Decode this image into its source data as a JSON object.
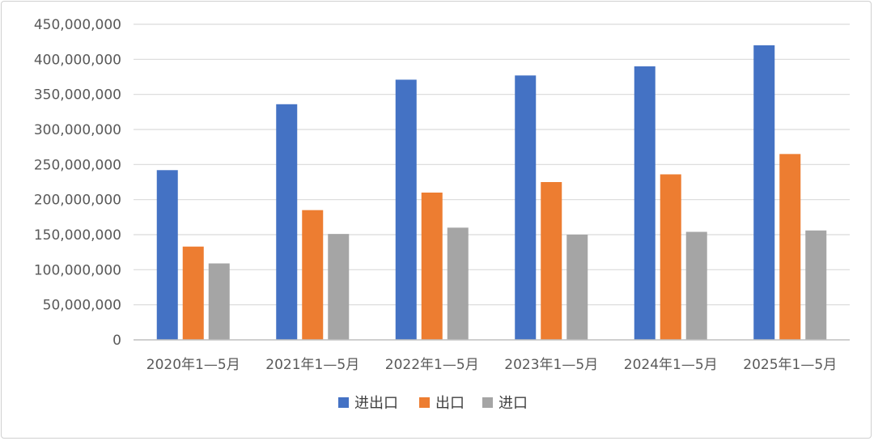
{
  "chart_data": {
    "type": "bar",
    "title": "",
    "xlabel": "",
    "ylabel": "",
    "categories": [
      "2020年1—5月",
      "2021年1—5月",
      "2022年1—5月",
      "2023年1—5月",
      "2024年1—5月",
      "2025年1—5月"
    ],
    "series": [
      {
        "name": "进出口",
        "color": "#4472C4",
        "values": [
          242000000,
          336000000,
          371000000,
          377000000,
          390000000,
          420000000
        ]
      },
      {
        "name": "出口",
        "color": "#ED7D31",
        "values": [
          133000000,
          185000000,
          210000000,
          225000000,
          236000000,
          265000000
        ]
      },
      {
        "name": "进口",
        "color": "#A5A5A5",
        "values": [
          109000000,
          151000000,
          160000000,
          150000000,
          154000000,
          156000000
        ]
      }
    ],
    "ylim": [
      0,
      450000000
    ],
    "yticks": [
      0,
      50000000,
      100000000,
      150000000,
      200000000,
      250000000,
      300000000,
      350000000,
      400000000,
      450000000
    ],
    "ytick_labels": [
      "0",
      "50,000,000",
      "100,000,000",
      "150,000,000",
      "200,000,000",
      "250,000,000",
      "300,000,000",
      "350,000,000",
      "400,000,000",
      "450,000,000"
    ],
    "grid": true,
    "legend": "bottom"
  }
}
